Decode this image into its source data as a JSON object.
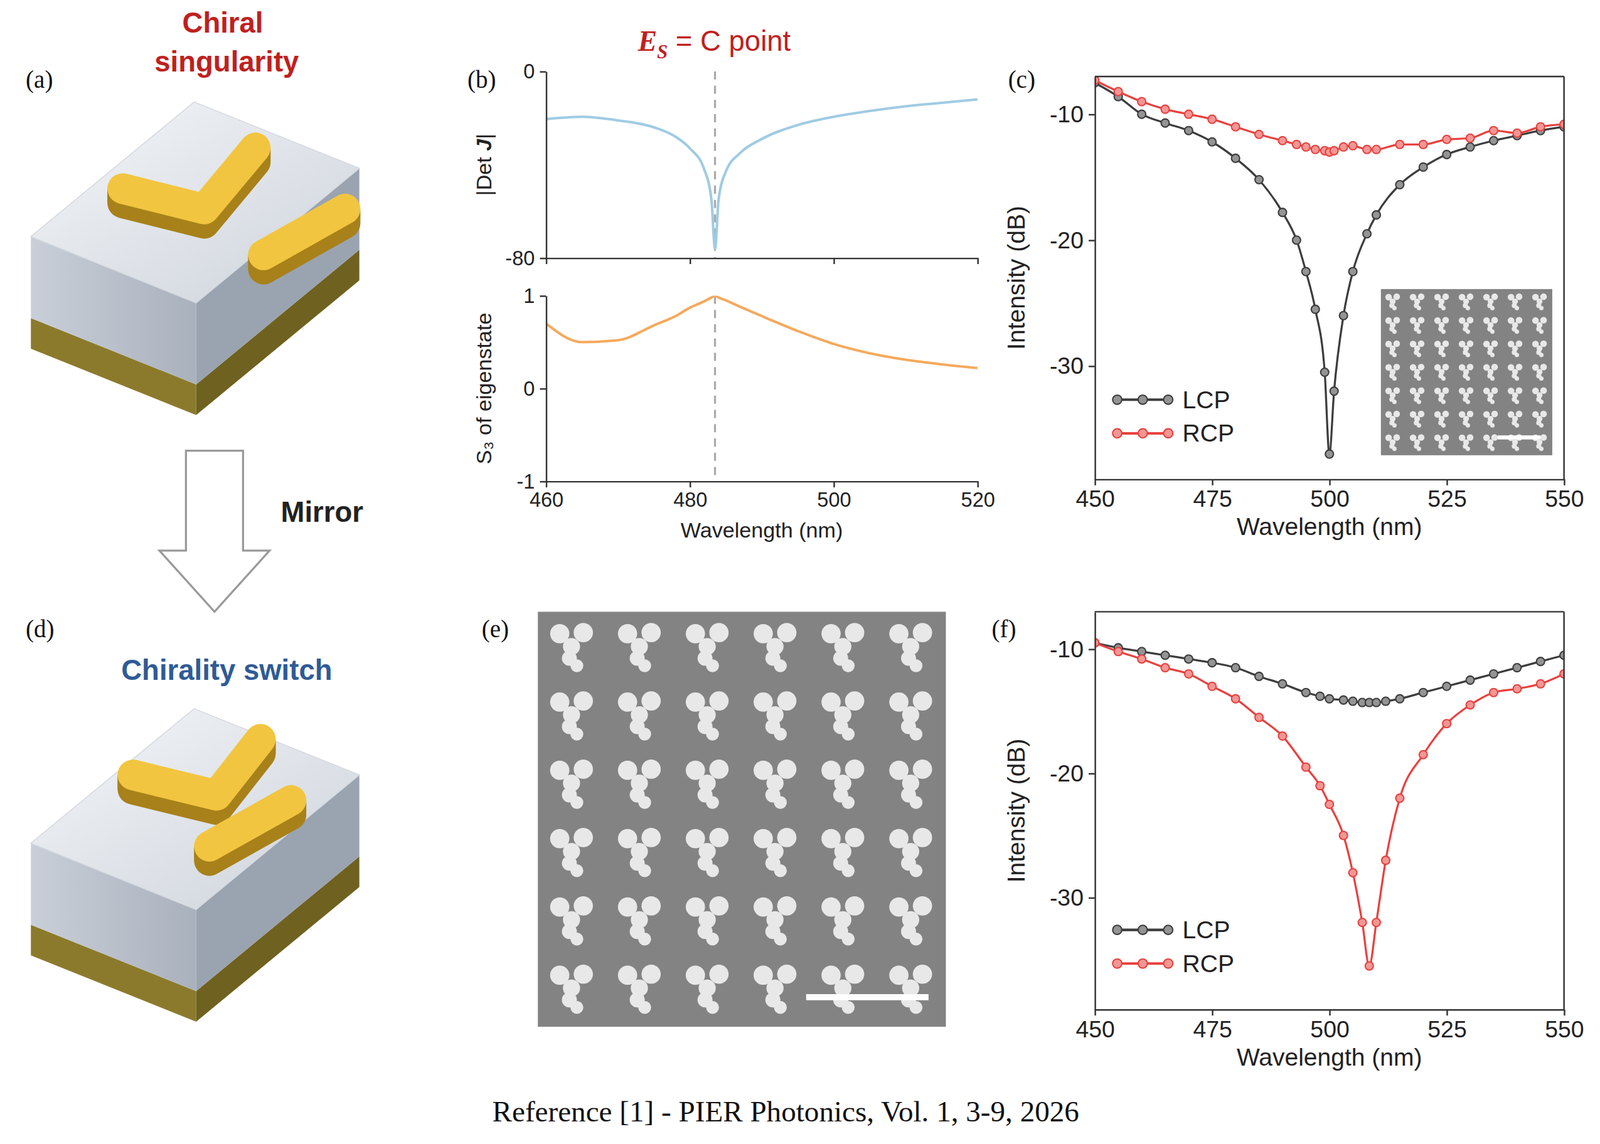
{
  "chart_data": [
    {
      "type": "line",
      "title": {
        "symbol": "E",
        "subscript": "S",
        "text": " = C point"
      },
      "ylabel": "|Det J|",
      "x": [
        460,
        465,
        470,
        475,
        478,
        480,
        482,
        483,
        483.5,
        484,
        485,
        487,
        490,
        495,
        500,
        505,
        510,
        515,
        520
      ],
      "xlim": [
        460,
        520
      ],
      "xticks": [
        460,
        480,
        500,
        520
      ],
      "ylim": [
        -80,
        0
      ],
      "yticks": [
        -80,
        0
      ],
      "tick_labels": "y",
      "grid": false,
      "vline": 483.5,
      "series": [
        {
          "color": "#9fcbe3",
          "line_style": "solid",
          "values": [
            -20.5,
            -19.5,
            -21,
            -24,
            -28,
            -33,
            -42,
            -55,
            -76,
            -55,
            -43,
            -35,
            -29,
            -23,
            -19.5,
            -17,
            -15,
            -13.5,
            -12
          ]
        }
      ]
    },
    {
      "type": "line",
      "xlabel": "Wavelength (nm)",
      "ylabel": "S₃ of eigenstate",
      "x": [
        460,
        465,
        470,
        475,
        478,
        480,
        482,
        483,
        483.5,
        484,
        485,
        487,
        490,
        495,
        500,
        505,
        510,
        515,
        520
      ],
      "xlim": [
        460,
        520
      ],
      "xticks": [
        460,
        480,
        500,
        520
      ],
      "ylim": [
        -1,
        1
      ],
      "yticks": [
        -1,
        0,
        1
      ],
      "grid": false,
      "vline": 483.5,
      "series": [
        {
          "color": "#f5a95c",
          "line_style": "solid",
          "values": [
            0.7,
            0.5,
            0.52,
            0.68,
            0.78,
            0.87,
            0.94,
            0.98,
            1.0,
            0.98,
            0.95,
            0.88,
            0.78,
            0.62,
            0.48,
            0.38,
            0.31,
            0.26,
            0.22
          ]
        }
      ]
    },
    {
      "type": "line",
      "xlabel": "Wavelength (nm)",
      "ylabel": "Intensity (dB)",
      "x": [
        450,
        455,
        460,
        465,
        470,
        475,
        480,
        485,
        490,
        493,
        495,
        497,
        499,
        500,
        501,
        503,
        505,
        508,
        510,
        515,
        520,
        525,
        530,
        535,
        540,
        545,
        550
      ],
      "xlim": [
        450,
        550
      ],
      "xticks": [
        450,
        475,
        500,
        525,
        550
      ],
      "ylim": [
        -39,
        -7
      ],
      "yticks": [
        -30,
        -20,
        -10
      ],
      "grid": false,
      "legend": "lower left",
      "series": [
        {
          "name": "LCP",
          "color": "#3d3d3d",
          "marker": "circle",
          "line_style": "solid",
          "values": [
            -7.5,
            -8.6,
            -10,
            -10.7,
            -11.3,
            -12.2,
            -13.5,
            -15.2,
            -17.8,
            -20,
            -22.5,
            -25.5,
            -30.5,
            -37,
            -32,
            -26,
            -22.5,
            -19.5,
            -18,
            -15.6,
            -14.2,
            -13.2,
            -12.6,
            -12.1,
            -11.7,
            -11.3,
            -11
          ]
        },
        {
          "name": "RCP",
          "color": "#e8413e",
          "marker": "circle",
          "line_style": "solid",
          "values": [
            -7.3,
            -8.2,
            -9,
            -9.6,
            -10,
            -10.4,
            -11,
            -11.6,
            -12.1,
            -12.4,
            -12.6,
            -12.8,
            -12.9,
            -13,
            -12.9,
            -12.6,
            -12.5,
            -12.8,
            -12.8,
            -12.4,
            -12.4,
            -12,
            -11.9,
            -11.3,
            -11.5,
            -11,
            -10.8
          ]
        }
      ]
    },
    {
      "type": "line",
      "xlabel": "Wavelength (nm)",
      "ylabel": "Intensity (dB)",
      "x": [
        450,
        455,
        460,
        465,
        470,
        475,
        480,
        485,
        490,
        495,
        498,
        500,
        503,
        505,
        507,
        508.5,
        510,
        512,
        515,
        520,
        525,
        530,
        535,
        540,
        545,
        550
      ],
      "xlim": [
        450,
        550
      ],
      "xticks": [
        450,
        475,
        500,
        525,
        550
      ],
      "ylim": [
        -39,
        -7
      ],
      "yticks": [
        -30,
        -20,
        -10
      ],
      "grid": false,
      "legend": "lower left",
      "series": [
        {
          "name": "LCP",
          "color": "#3d3d3d",
          "marker": "circle",
          "line_style": "solid",
          "values": [
            -9.5,
            -9.9,
            -10.2,
            -10.5,
            -10.8,
            -11.1,
            -11.5,
            -12.2,
            -12.8,
            -13.5,
            -13.8,
            -14,
            -14.1,
            -14.2,
            -14.3,
            -14.3,
            -14.3,
            -14.2,
            -14,
            -13.5,
            -13,
            -12.5,
            -12,
            -11.5,
            -11,
            -10.5
          ]
        },
        {
          "name": "RCP",
          "color": "#e8413e",
          "marker": "circle",
          "line_style": "solid",
          "values": [
            -9.5,
            -10.2,
            -10.8,
            -11.5,
            -12,
            -13,
            -14,
            -15.5,
            -17,
            -19.5,
            -21,
            -22.5,
            -25,
            -28,
            -32,
            -35.5,
            -32,
            -27,
            -22,
            -18.5,
            -16,
            -14.5,
            -13.5,
            -13.2,
            -12.8,
            -12
          ]
        }
      ]
    }
  ],
  "figure": {
    "panel_labels": [
      "(a)",
      "(b)",
      "(c)",
      "(d)",
      "(e)",
      "(f)"
    ],
    "a_title": "Chiral singularity",
    "arrow_label": "Mirror",
    "d_title": "Chirality switch",
    "caption": "Reference [1] - PIER Photonics, Vol. 1, 3-9, 2026"
  }
}
